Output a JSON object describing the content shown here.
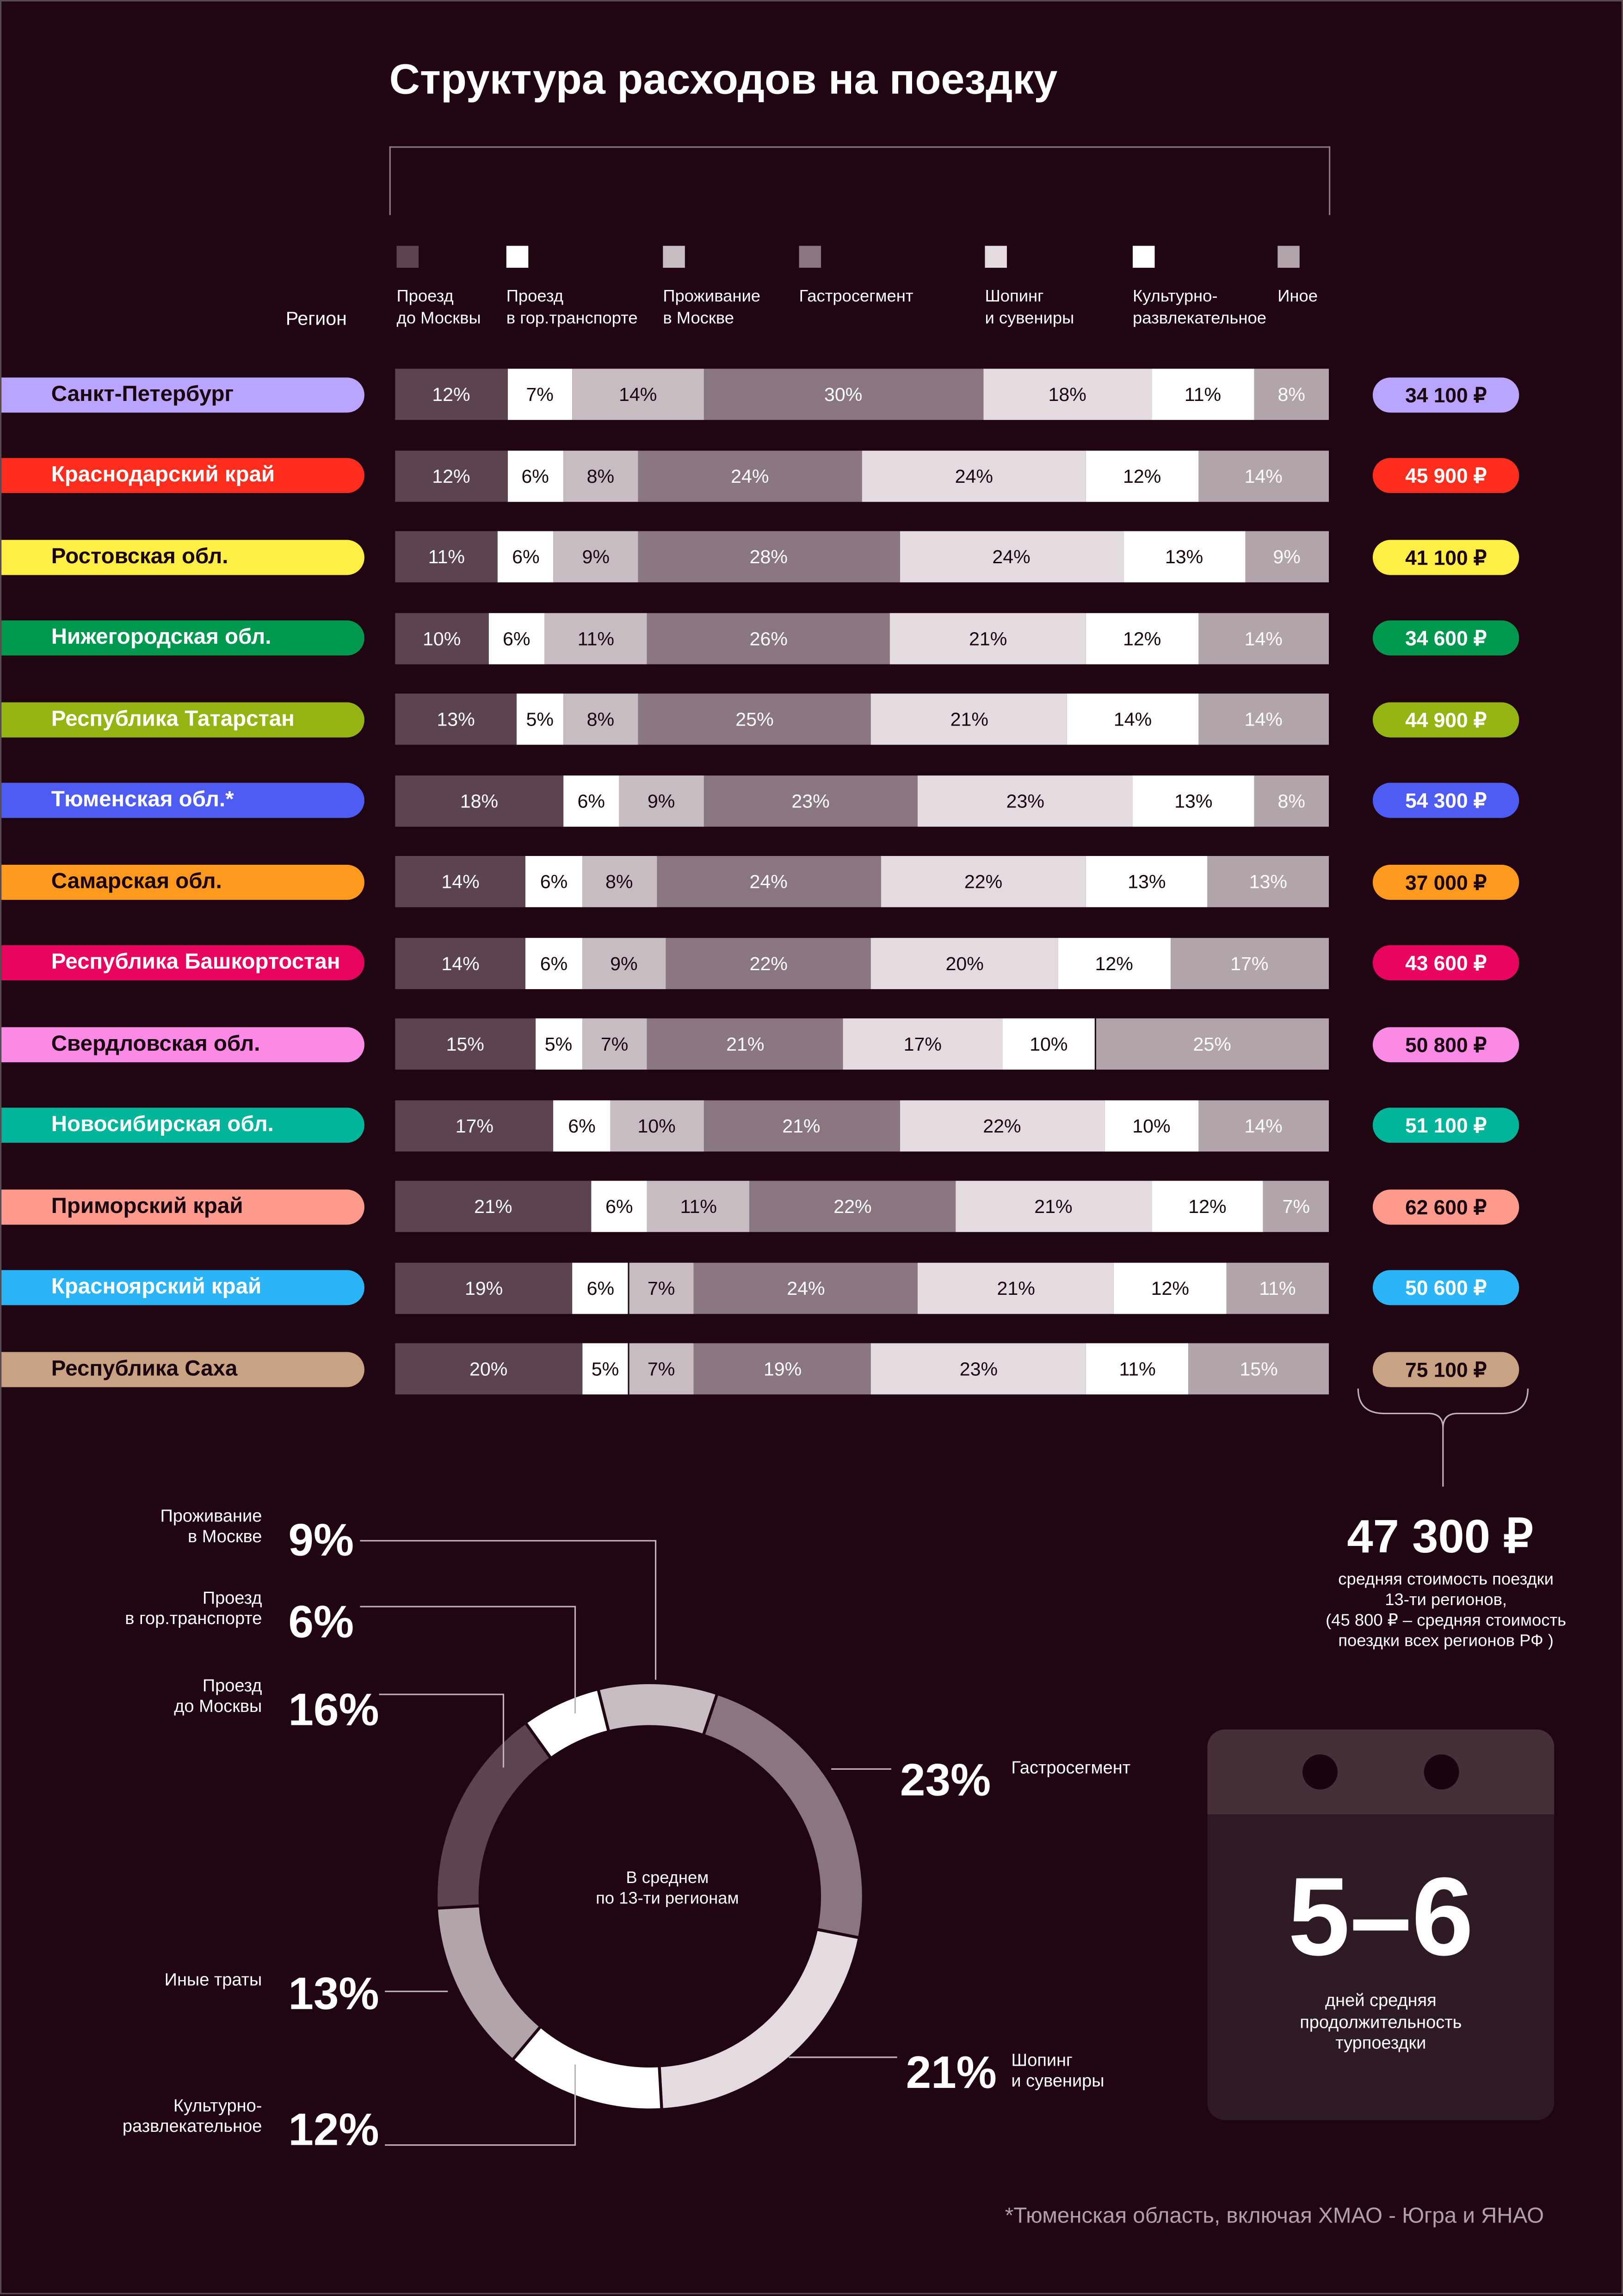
{
  "title": "Структура расходов на поездку",
  "chart_data": [
    {
      "type": "stacked_bar_100",
      "category_axis_label": "Регион",
      "categories": [
        "Санкт-Петербург",
        "Краснодарский край",
        "Ростовская обл.",
        "Нижегородская обл.",
        "Республика Татарстан",
        "Тюменская обл.*",
        "Самарская обл.",
        "Республика Башкортостан",
        "Свердловская обл.",
        "Новосибирская обл.",
        "Приморский край",
        "Красноярский край",
        "Республика Саха"
      ],
      "category_colors": [
        "#b9a4ff",
        "#ff2d1e",
        "#ffee44",
        "#00974e",
        "#94b414",
        "#4f5cf4",
        "#ff9a1e",
        "#e8035f",
        "#fb8ae6",
        "#00b49a",
        "#ff9a8e",
        "#2cb4f8",
        "#c9a284"
      ],
      "totals": [
        "34 100 ₽",
        "45 900 ₽",
        "41 100 ₽",
        "34 600 ₽",
        "44 900 ₽",
        "54 300 ₽",
        "37 000 ₽",
        "43 600 ₽",
        "50 800 ₽",
        "51 100 ₽",
        "62 600 ₽",
        "50 600 ₽",
        "75 100 ₽"
      ],
      "series": [
        {
          "name": "Проезд\nдо Москвы",
          "color": "#5c4350",
          "values": [
            12,
            12,
            11,
            10,
            13,
            18,
            14,
            14,
            15,
            17,
            21,
            19,
            20
          ],
          "value_labels": [
            "12%",
            "12%",
            "11%",
            "10%",
            "13%",
            "18%",
            "14%",
            "14%",
            "15%",
            "17%",
            "21%",
            "19%",
            "20%"
          ]
        },
        {
          "name": "Проезд\nв гор.транспорте",
          "color": "#ffffff",
          "values": [
            7,
            6,
            6,
            6,
            5,
            6,
            6,
            6,
            5,
            6,
            6,
            6,
            5
          ],
          "value_labels": [
            "7%",
            "6%",
            "6%",
            "6%",
            "5%",
            "6%",
            "6%",
            "6%",
            "5%",
            "6%",
            "6%",
            "6%",
            "5%"
          ]
        },
        {
          "name": "Проживание\nв Москве",
          "color": "#c7bcc1",
          "values": [
            14,
            8,
            9,
            11,
            8,
            9,
            8,
            9,
            7,
            10,
            11,
            7,
            7
          ],
          "value_labels": [
            "14%",
            "8%",
            "9%",
            "11%",
            "8%",
            "9%",
            "8%",
            "9%",
            "7%",
            "10%",
            "11%",
            "7%",
            "7%"
          ]
        },
        {
          "name": "Гастросегмент",
          "color": "#8a7680",
          "values": [
            30,
            24,
            28,
            26,
            25,
            23,
            24,
            22,
            21,
            21,
            22,
            24,
            19
          ],
          "value_labels": [
            "30%",
            "24%",
            "28%",
            "26%",
            "25%",
            "23%",
            "24%",
            "22%",
            "21%",
            "21%",
            "22%",
            "24%",
            "19%"
          ]
        },
        {
          "name": "Шопинг\nи сувениры",
          "color": "#e3dbdf",
          "values": [
            18,
            24,
            24,
            21,
            21,
            23,
            22,
            20,
            17,
            22,
            21,
            21,
            23
          ],
          "value_labels": [
            "18%",
            "24%",
            "24%",
            "21%",
            "21%",
            "23%",
            "22%",
            "20%",
            "17%",
            "22%",
            "21%",
            "21%",
            "23%"
          ]
        },
        {
          "name": "Культурно-\nразвлекательное",
          "color": "#ffffff",
          "values": [
            11,
            12,
            13,
            12,
            14,
            13,
            13,
            12,
            10,
            10,
            12,
            12,
            11
          ],
          "value_labels": [
            "11%",
            "12%",
            "13%",
            "12%",
            "14%",
            "13%",
            "13%",
            "12%",
            "10%",
            "10%",
            "12%",
            "12%",
            "11%"
          ]
        },
        {
          "name": "Иное",
          "color": "#b1a5ab",
          "values": [
            8,
            14,
            9,
            14,
            14,
            8,
            13,
            17,
            25,
            14,
            7,
            11,
            15
          ],
          "value_labels": [
            "8%",
            "14%",
            "9%",
            "14%",
            "14%",
            "8%",
            "13%",
            "17%",
            "25%",
            "14%",
            "7%",
            "11%",
            "15%"
          ]
        }
      ]
    },
    {
      "type": "donut",
      "center_label": "В среднем\nпо 13-ти регионам",
      "categories": [
        "Проживание\nв Москве",
        "Гастросегмент",
        "Шопинг\nи сувениры",
        "Культурно-\nразвлекательное",
        "Иные траты",
        "Проезд\nдо Москвы",
        "Проезд\nв гор.транспорте"
      ],
      "colors": [
        "#c7bcc1",
        "#8a7680",
        "#e3dbdf",
        "#ffffff",
        "#b1a5ab",
        "#5c4350",
        "#ffffff"
      ],
      "values": [
        9,
        23,
        21,
        12,
        13,
        16,
        6
      ],
      "value_labels": [
        "9%",
        "23%",
        "21%",
        "12%",
        "13%",
        "16%",
        "6%"
      ]
    }
  ],
  "average_cost": "47 300 ₽",
  "average_note": "средняя стоимость поездки\n13-ти регионов,\n(45 800 ₽ – средняя стоимость\n поездки всех регионов РФ )",
  "duration": "5–6",
  "duration_note": "дней средняя\nпродолжительность\nтурпоездки",
  "footnote": "*Тюменская область, включая ХМАО - Югра и ЯНАО"
}
